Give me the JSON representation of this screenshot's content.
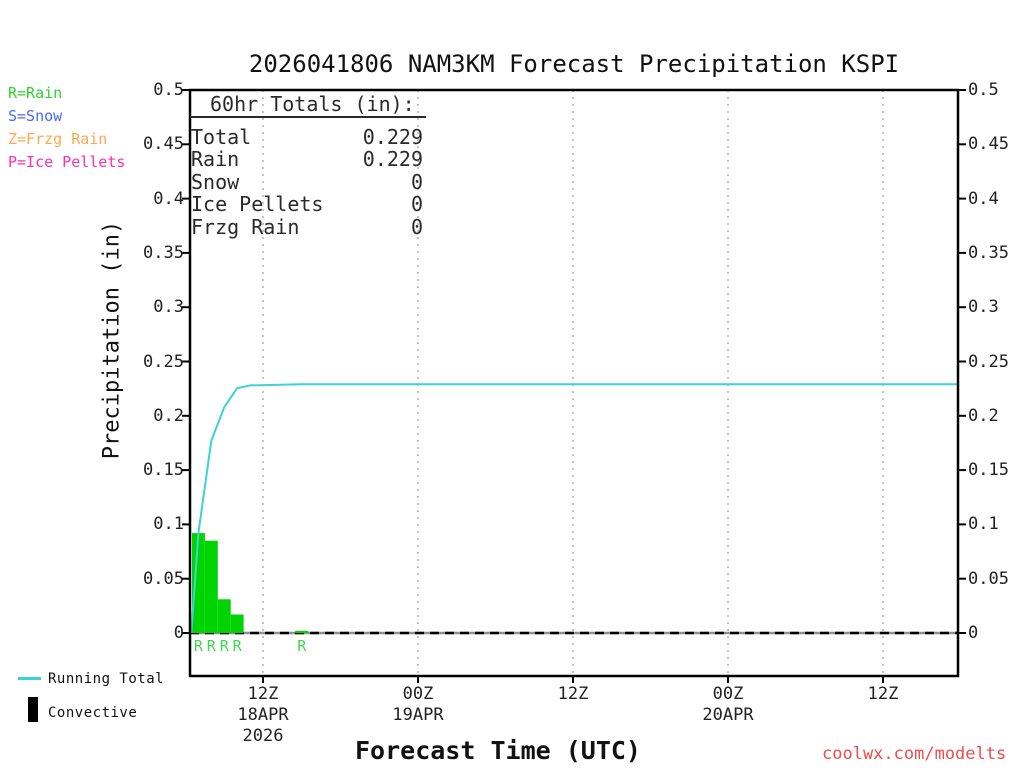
{
  "title": "2026041806 NAM3KM Forecast Precipitation KSPI",
  "type_legend": {
    "items": [
      {
        "text": "R=Rain",
        "color": "#2ed32e"
      },
      {
        "text": "S=Snow",
        "color": "#4868ff"
      },
      {
        "text": "Z=Frzg Rain",
        "color": "#ffa94f"
      },
      {
        "text": "P=Ice Pellets",
        "color": "#ff2fae"
      }
    ]
  },
  "totals_box": {
    "heading": "60hr Totals (in):",
    "rows": [
      {
        "label": "Total",
        "value": "0.229"
      },
      {
        "label": "Rain",
        "value": "0.229"
      },
      {
        "label": "Snow",
        "value": "0"
      },
      {
        "label": "Ice Pellets",
        "value": "0"
      },
      {
        "label": "Frzg Rain",
        "value": "0"
      }
    ]
  },
  "chart_data": {
    "type": "bar",
    "title": "2026041806 NAM3KM Forecast Precipitation KSPI",
    "xlabel": "Forecast Time (UTC)",
    "ylabel": "Precipitation (in)",
    "ylim": [
      0,
      0.5
    ],
    "x_range_hours": [
      0,
      60
    ],
    "grid": "vertical-dotted",
    "y_ticks": [
      {
        "value": 0,
        "label": "0"
      },
      {
        "value": 0.05,
        "label": "0.05"
      },
      {
        "value": 0.1,
        "label": "0.1"
      },
      {
        "value": 0.15,
        "label": "0.15"
      },
      {
        "value": 0.2,
        "label": "0.2"
      },
      {
        "value": 0.25,
        "label": "0.25"
      },
      {
        "value": 0.3,
        "label": "0.3"
      },
      {
        "value": 0.35,
        "label": "0.35"
      },
      {
        "value": 0.4,
        "label": "0.4"
      },
      {
        "value": 0.45,
        "label": "0.45"
      },
      {
        "value": 0.5,
        "label": "0.5"
      }
    ],
    "x_ticks": [
      {
        "hour": 6,
        "label": "12Z",
        "date": "18APR",
        "year": "2026"
      },
      {
        "hour": 18,
        "label": "00Z",
        "date": "19APR",
        "year": ""
      },
      {
        "hour": 30,
        "label": "12Z",
        "date": "",
        "year": ""
      },
      {
        "hour": 42,
        "label": "00Z",
        "date": "20APR",
        "year": ""
      },
      {
        "hour": 54,
        "label": "12Z",
        "date": "",
        "year": ""
      }
    ],
    "series": [
      {
        "name": "Hourly Precipitation",
        "type": "bar",
        "color": "#00d400",
        "label_color": "#44d455",
        "points": [
          {
            "hour": 1,
            "value": 0.092,
            "ptype": "R"
          },
          {
            "hour": 2,
            "value": 0.085,
            "ptype": "R"
          },
          {
            "hour": 3,
            "value": 0.031,
            "ptype": "R"
          },
          {
            "hour": 4,
            "value": 0.017,
            "ptype": "R"
          },
          {
            "hour": 9,
            "value": 0.002,
            "ptype": "R"
          }
        ]
      },
      {
        "name": "Running Total",
        "type": "line",
        "color": "#3cd3d6",
        "points": [
          [
            0.45,
            0
          ],
          [
            1,
            0.092
          ],
          [
            2,
            0.177
          ],
          [
            3,
            0.208
          ],
          [
            4,
            0.2255
          ],
          [
            5,
            0.228
          ],
          [
            9,
            0.229
          ],
          [
            60,
            0.229
          ]
        ]
      }
    ],
    "zero_line": "dashed-black"
  },
  "bottom_legend": {
    "items": [
      {
        "label": "Running Total",
        "swatch": "line",
        "color": "#3cd3d6"
      },
      {
        "label": "Convective",
        "swatch": "bar",
        "color": "#000000"
      }
    ]
  },
  "watermark": {
    "text": "coolwx.com/modelts",
    "color": "#f14b4b"
  }
}
